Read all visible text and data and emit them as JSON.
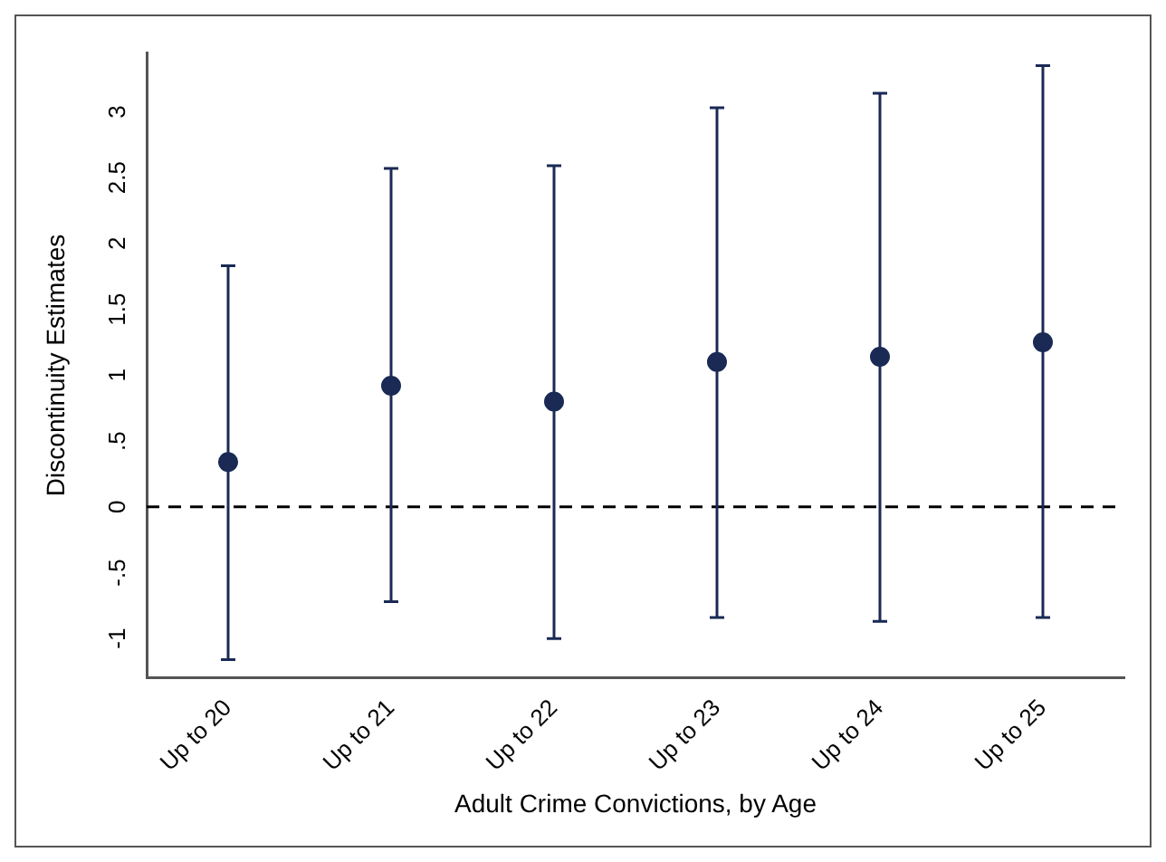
{
  "chart_data": {
    "type": "scatter",
    "xlabel": "Adult Crime Convictions, by Age",
    "ylabel": "Discontinuity Estimates",
    "categories": [
      "Up to 20",
      "Up to 21",
      "Up to 22",
      "Up to 23",
      "Up to 24",
      "Up to 25"
    ],
    "series": [
      {
        "color": "#1a2a55",
        "values": [
          0.34,
          0.92,
          0.8,
          1.1,
          1.14,
          1.25
        ],
        "errors": [
          [
            -1.16,
            1.83
          ],
          [
            -0.72,
            2.57
          ],
          [
            -1.0,
            2.59
          ],
          [
            -0.84,
            3.03
          ],
          [
            -0.87,
            3.14
          ],
          [
            -0.84,
            3.35
          ]
        ]
      }
    ],
    "ylim": [
      -1.3,
      3.45
    ],
    "yticks": [
      -1,
      {
        "value": -0.5,
        "label": "-.5"
      },
      0,
      {
        "value": 0.5,
        "label": ".5"
      },
      1,
      {
        "value": 1.5,
        "label": "1.5"
      },
      2,
      {
        "value": 2.5,
        "label": "2.5"
      },
      3
    ],
    "ref_lines": [
      {
        "axis": "y",
        "value": 0,
        "color": "#000000",
        "line_style": "dashed"
      }
    ],
    "grid": false,
    "legend": false,
    "marker": "circle"
  }
}
